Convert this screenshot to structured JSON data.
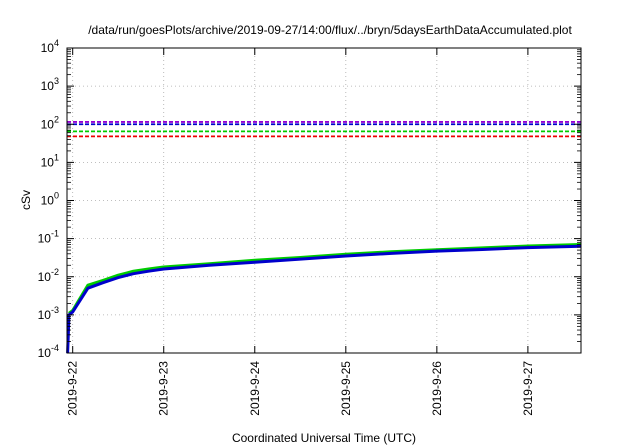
{
  "chart_data": {
    "type": "line",
    "title": "/data/run/goesPlots/archive/2019-09-27/14:00/flux/../bryn/5daysEarthDataAccumulated.plot",
    "xlabel": "Coordinated Universal Time (UTC)",
    "ylabel": "cSv",
    "y_scale": "log",
    "ylim": [
      0.0001,
      10000
    ],
    "xlim": [
      "2019-09-21 22:30",
      "2019-09-27 14:00"
    ],
    "grid": true,
    "x_ticks": [
      "2019-9-22",
      "2019-9-23",
      "2019-9-24",
      "2019-9-25",
      "2019-9-26",
      "2019-9-27"
    ],
    "y_ticks": [
      {
        "value": 0.0001,
        "mantissa": "10",
        "exp": "-4"
      },
      {
        "value": 0.001,
        "mantissa": "10",
        "exp": "-3"
      },
      {
        "value": 0.01,
        "mantissa": "10",
        "exp": "-2"
      },
      {
        "value": 0.1,
        "mantissa": "10",
        "exp": "-1"
      },
      {
        "value": 1,
        "mantissa": "10",
        "exp": "0"
      },
      {
        "value": 10,
        "mantissa": "10",
        "exp": "1"
      },
      {
        "value": 100,
        "mantissa": "10",
        "exp": "2"
      },
      {
        "value": 1000,
        "mantissa": "10",
        "exp": "3"
      },
      {
        "value": 10000,
        "mantissa": "10",
        "exp": "4"
      }
    ],
    "reference_lines": [
      {
        "y": 115,
        "color": "#9400d3",
        "dash": "dashed"
      },
      {
        "y": 100,
        "color": "#0000cc",
        "dash": "dashed"
      },
      {
        "y": 65,
        "color": "#00cc00",
        "dash": "dashed"
      },
      {
        "y": 48,
        "color": "#ee0000",
        "dash": "dashed"
      }
    ],
    "series": [
      {
        "color": "#00cc00",
        "x": [
          "2019-09-21 23:00",
          "2019-09-22 00:00",
          "2019-09-22 04:00",
          "2019-09-22 08:00",
          "2019-09-22 12:00",
          "2019-09-22 16:00",
          "2019-09-22 20:00",
          "2019-09-23 00:00",
          "2019-09-23 12:00",
          "2019-09-24 00:00",
          "2019-09-24 12:00",
          "2019-09-25 00:00",
          "2019-09-25 12:00",
          "2019-09-26 00:00",
          "2019-09-26 12:00",
          "2019-09-27 00:00",
          "2019-09-27 14:00"
        ],
        "values": [
          0.0011,
          0.0013,
          0.006,
          0.008,
          0.011,
          0.014,
          0.016,
          0.018,
          0.022,
          0.027,
          0.032,
          0.039,
          0.045,
          0.051,
          0.057,
          0.064,
          0.07
        ]
      },
      {
        "color": "#0000cc",
        "x": [
          "2019-09-21 22:40",
          "2019-09-21 22:50",
          "2019-09-21 23:00",
          "2019-09-22 00:00",
          "2019-09-22 04:00",
          "2019-09-22 08:00",
          "2019-09-22 12:00",
          "2019-09-22 16:00",
          "2019-09-22 20:00",
          "2019-09-23 00:00",
          "2019-09-23 12:00",
          "2019-09-24 00:00",
          "2019-09-24 12:00",
          "2019-09-25 00:00",
          "2019-09-25 12:00",
          "2019-09-26 00:00",
          "2019-09-26 12:00",
          "2019-09-27 00:00",
          "2019-09-27 14:00"
        ],
        "values": [
          0.0001,
          0.0003,
          0.001,
          0.0012,
          0.005,
          0.007,
          0.0095,
          0.012,
          0.014,
          0.016,
          0.02,
          0.024,
          0.029,
          0.035,
          0.041,
          0.047,
          0.052,
          0.058,
          0.063
        ]
      }
    ]
  }
}
